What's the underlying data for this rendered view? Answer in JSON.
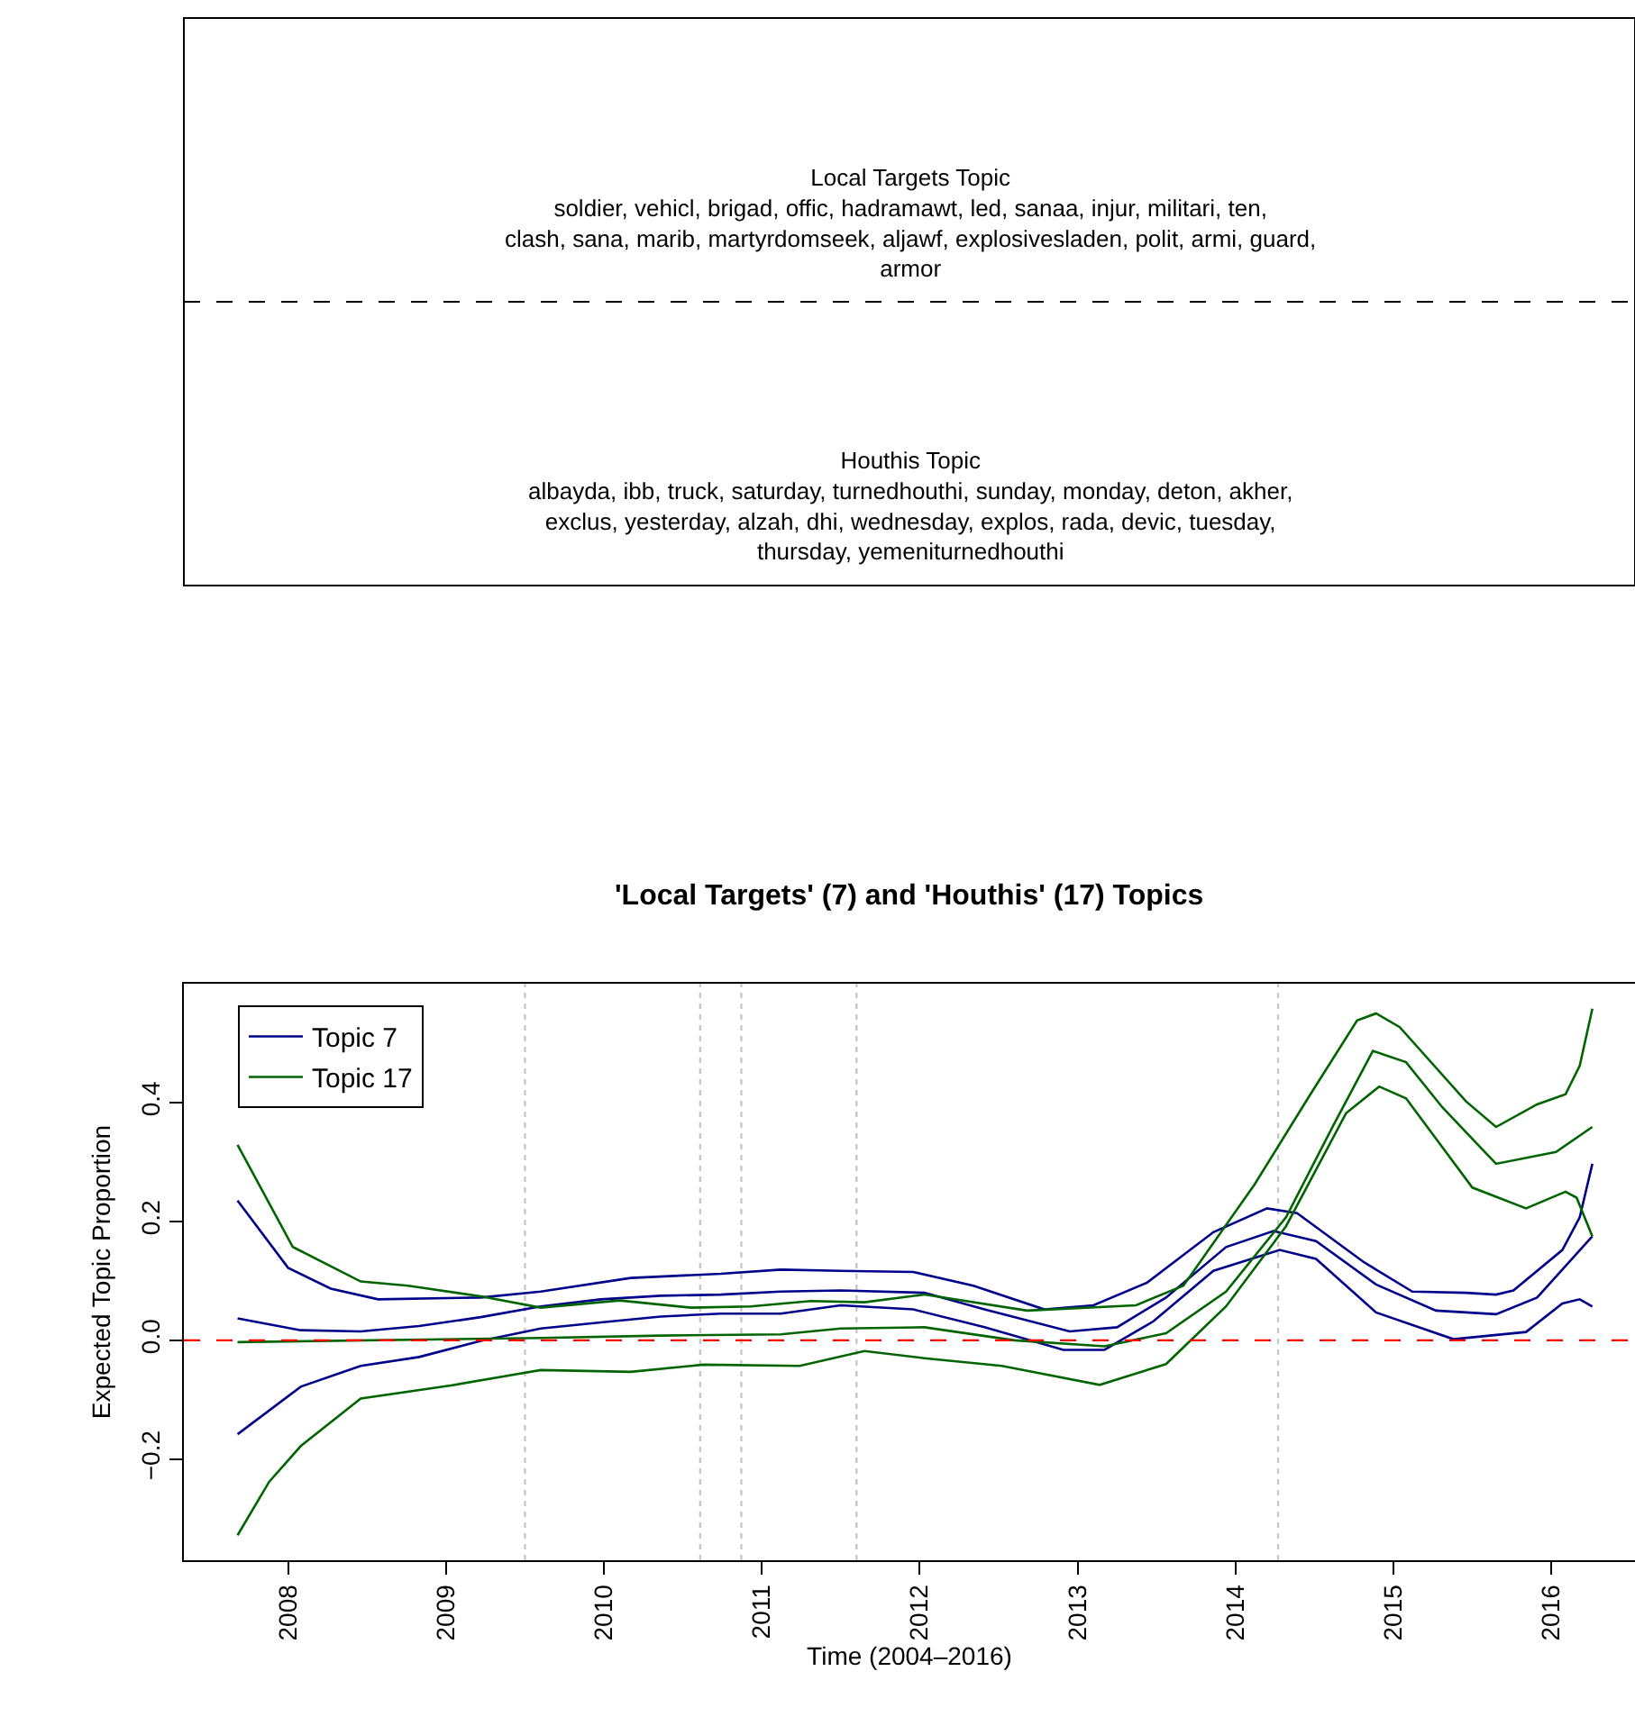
{
  "chart_data": [
    {
      "type": "other",
      "annotations": [
        "Local Targets Topic",
        "soldier, vehicl, brigad, offic, hadramawt, led, sanaa, injur, militari, ten, clash, sana, marib, martyrdomseek, aljawf, explosivesladen, polit, armi, guard, armor",
        "Houthis Topic",
        "albayda, ibb, truck, saturday, turnedhouthi, sunday, monday, deton, akher, exclus, yesterday, alzah, dhi, wednesday, explos, rada, devic, tuesday, thursday, yemeniturnedhouthi"
      ]
    },
    {
      "type": "line",
      "title": "'Local Targets' (7) and 'Houthis' (17) Topics",
      "xlabel": "Time (2004–2016)",
      "ylabel": "Expected Topic Proportion",
      "xlim": [
        2007.34,
        2016.53
      ],
      "ylim": [
        -0.37,
        0.6
      ],
      "xticks": [
        2008,
        2009,
        2010,
        2011,
        2012,
        2013,
        2014,
        2015,
        2016
      ],
      "yticks": [
        {
          "value": -0.2,
          "label": "−0.2"
        },
        {
          "value": 0,
          "label": "0.0"
        },
        0.2,
        0.4
      ],
      "legend": "top left",
      "ref_lines": [
        {
          "axis": "y",
          "value": 0,
          "label": null,
          "color": "#ff0000",
          "line_style": "dashed"
        },
        {
          "axis": "x",
          "value": 2009.5,
          "label": null,
          "color": "#c8c8c8",
          "line_style": "dotted"
        },
        {
          "axis": "x",
          "value": 2010.61,
          "label": null,
          "color": "#c8c8c8",
          "line_style": "dotted"
        },
        {
          "axis": "x",
          "value": 2010.87,
          "label": null,
          "color": "#c8c8c8",
          "line_style": "dotted"
        },
        {
          "axis": "x",
          "value": 2011.6,
          "label": null,
          "color": "#c8c8c8",
          "line_style": "dotted"
        },
        {
          "axis": "x",
          "value": 2014.27,
          "label": null,
          "color": "#c8c8c8",
          "line_style": "dotted"
        }
      ],
      "series": [
        {
          "name": "Topic 7",
          "color": "#00008b",
          "x": [
            2007.68,
            2008.08,
            2008.46,
            2008.83,
            2009.22,
            2009.6,
            2009.98,
            2010.36,
            2010.74,
            2011.12,
            2011.5,
            2012.03,
            2012.41,
            2012.95,
            2013.25,
            2013.56,
            2013.94,
            2014.24,
            2014.51,
            2014.89,
            2015.27,
            2015.65,
            2015.91,
            2016.26
          ],
          "values": [
            0.037,
            0.017,
            0.015,
            0.024,
            0.039,
            0.057,
            0.069,
            0.075,
            0.077,
            0.082,
            0.084,
            0.08,
            0.052,
            0.015,
            0.022,
            0.072,
            0.157,
            0.184,
            0.167,
            0.094,
            0.05,
            0.044,
            0.072,
            0.175
          ]
        },
        {
          "color": "#00008b",
          "x": [
            2007.68,
            2008.0,
            2008.27,
            2008.57,
            2009.22,
            2009.6,
            2010.17,
            2010.74,
            2011.12,
            2011.5,
            2011.96,
            2012.34,
            2012.79,
            2013.1,
            2013.44,
            2013.86,
            2014.2,
            2014.39,
            2014.81,
            2015.12,
            2015.46,
            2015.65,
            2015.76,
            2016.07,
            2016.18,
            2016.26
          ],
          "values": [
            0.235,
            0.122,
            0.087,
            0.069,
            0.072,
            0.082,
            0.105,
            0.112,
            0.119,
            0.117,
            0.115,
            0.092,
            0.052,
            0.059,
            0.097,
            0.182,
            0.222,
            0.214,
            0.132,
            0.082,
            0.08,
            0.077,
            0.084,
            0.152,
            0.207,
            0.297
          ]
        },
        {
          "color": "#00008b",
          "x": [
            2007.68,
            2008.08,
            2008.46,
            2008.83,
            2009.22,
            2009.6,
            2009.98,
            2010.36,
            2010.74,
            2011.12,
            2011.5,
            2011.96,
            2012.41,
            2012.91,
            2013.17,
            2013.48,
            2013.86,
            2014.28,
            2014.51,
            2014.89,
            2015.38,
            2015.84,
            2016.07,
            2016.18,
            2016.26
          ],
          "values": [
            -0.158,
            -0.078,
            -0.043,
            -0.028,
            -0.001,
            0.02,
            0.03,
            0.04,
            0.045,
            0.045,
            0.059,
            0.052,
            0.022,
            -0.016,
            -0.016,
            0.032,
            0.117,
            0.152,
            0.137,
            0.047,
            0.002,
            0.014,
            0.062,
            0.069,
            0.057
          ]
        },
        {
          "name": "Topic 17",
          "color": "#006400",
          "x": [
            2007.68,
            2009.6,
            2010.36,
            2011.12,
            2011.5,
            2012.03,
            2012.6,
            2013.17,
            2013.56,
            2013.94,
            2014.32,
            2014.62,
            2014.87,
            2015.08,
            2015.31,
            2015.65,
            2016.03,
            2016.26
          ],
          "values": [
            -0.003,
            0.004,
            0.008,
            0.01,
            0.02,
            0.022,
            0.0,
            -0.01,
            0.012,
            0.082,
            0.207,
            0.362,
            0.487,
            0.468,
            0.392,
            0.297,
            0.317,
            0.359
          ]
        },
        {
          "color": "#006400",
          "x": [
            2007.68,
            2008.03,
            2008.46,
            2008.76,
            2009.22,
            2009.6,
            2010.1,
            2010.55,
            2010.93,
            2011.31,
            2011.65,
            2012.03,
            2012.68,
            2013.37,
            2013.67,
            2014.12,
            2014.47,
            2014.77,
            2014.89,
            2015.04,
            2015.46,
            2015.65,
            2015.91,
            2016.09,
            2016.18,
            2016.26
          ],
          "values": [
            0.329,
            0.157,
            0.099,
            0.092,
            0.074,
            0.055,
            0.067,
            0.055,
            0.057,
            0.066,
            0.064,
            0.077,
            0.05,
            0.059,
            0.092,
            0.262,
            0.412,
            0.538,
            0.55,
            0.527,
            0.402,
            0.359,
            0.397,
            0.414,
            0.462,
            0.558
          ]
        },
        {
          "color": "#006400",
          "x": [
            2007.68,
            2007.88,
            2008.08,
            2008.46,
            2009.03,
            2009.6,
            2010.17,
            2010.63,
            2011.24,
            2011.65,
            2012.03,
            2012.52,
            2013.14,
            2013.56,
            2013.94,
            2014.32,
            2014.7,
            2014.91,
            2015.08,
            2015.5,
            2015.84,
            2016.09,
            2016.16,
            2016.26
          ],
          "values": [
            -0.328,
            -0.238,
            -0.178,
            -0.098,
            -0.076,
            -0.05,
            -0.053,
            -0.041,
            -0.043,
            -0.018,
            -0.03,
            -0.043,
            -0.075,
            -0.04,
            0.057,
            0.192,
            0.382,
            0.427,
            0.407,
            0.257,
            0.222,
            0.25,
            0.24,
            0.175
          ]
        }
      ]
    }
  ]
}
